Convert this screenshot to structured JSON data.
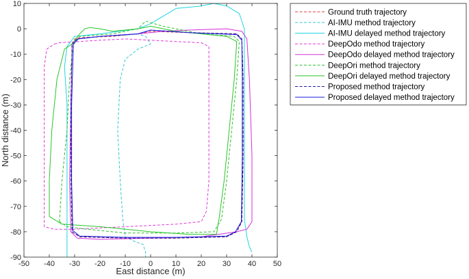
{
  "chart_data": {
    "type": "line",
    "xlabel": "East distance (m)",
    "ylabel": "North distance (m)",
    "xlim": [
      -50,
      50
    ],
    "ylim": [
      -90,
      10
    ],
    "xticks": [
      -50,
      -40,
      -30,
      -20,
      -10,
      0,
      10,
      20,
      30,
      40,
      50
    ],
    "yticks": [
      10,
      0,
      -10,
      -20,
      -30,
      -40,
      -50,
      -60,
      -70,
      -80,
      -90
    ],
    "grid": false,
    "legend_position": "outside-right",
    "series": [
      {
        "name": "Ground truth trajectory",
        "color": "#e03a3a",
        "dash": "dashed",
        "points": [
          [
            -31,
            -6
          ],
          [
            -30,
            -4
          ],
          [
            -28,
            -3.5
          ],
          [
            -15,
            -3
          ],
          [
            -5,
            -2
          ],
          [
            0,
            -1
          ],
          [
            15,
            -1.5
          ],
          [
            34,
            -2
          ],
          [
            36,
            -4
          ],
          [
            36.5,
            -20
          ],
          [
            36.5,
            -50
          ],
          [
            36,
            -76
          ],
          [
            34,
            -80
          ],
          [
            30,
            -82
          ],
          [
            10,
            -82.5
          ],
          [
            -10,
            -82.5
          ],
          [
            -28,
            -82
          ],
          [
            -31,
            -80
          ],
          [
            -31.5,
            -60
          ],
          [
            -31.5,
            -30
          ],
          [
            -31,
            -6
          ]
        ]
      },
      {
        "name": "AI-IMU method trajectory",
        "color": "#33c6d6",
        "dash": "dashed",
        "points": [
          [
            -31,
            -6
          ],
          [
            -29,
            -4
          ],
          [
            -20,
            -3
          ],
          [
            -10,
            -2.5
          ],
          [
            -5,
            -2
          ],
          [
            -2,
            -3
          ],
          [
            0,
            -6
          ],
          [
            -5,
            -8
          ],
          [
            -10,
            -12
          ],
          [
            -12,
            -20
          ],
          [
            -13,
            -40
          ],
          [
            -12,
            -60
          ],
          [
            -11,
            -75
          ],
          [
            -10,
            -82
          ],
          [
            -6,
            -84
          ],
          [
            -3,
            -85
          ],
          [
            -2,
            -88
          ],
          [
            -2,
            -90
          ]
        ]
      },
      {
        "name": "AI-IMU delayed method trajectory",
        "color": "#20d4e0",
        "dash": "solid",
        "points": [
          [
            -33,
            -90
          ],
          [
            -33,
            -70
          ],
          [
            -33,
            -30
          ],
          [
            -34,
            -15
          ],
          [
            -33,
            -7
          ],
          [
            -30,
            -3
          ],
          [
            -20,
            -2
          ],
          [
            -5,
            0
          ],
          [
            0,
            2
          ],
          [
            5,
            5
          ],
          [
            10,
            8
          ],
          [
            20,
            9
          ],
          [
            25,
            10
          ],
          [
            30,
            9
          ],
          [
            35,
            6
          ],
          [
            36,
            3
          ],
          [
            37,
            0
          ],
          [
            37,
            -10
          ],
          [
            37,
            -40
          ],
          [
            37,
            -75
          ],
          [
            38,
            -82
          ],
          [
            39,
            -86
          ],
          [
            40,
            -88
          ]
        ]
      },
      {
        "name": "DeepOdo method trajectory",
        "color": "#dd3ad8",
        "dash": "dashed",
        "points": [
          [
            -38,
            -6
          ],
          [
            -36,
            -5.5
          ],
          [
            -20,
            -4.5
          ],
          [
            -10,
            -4
          ],
          [
            0,
            -4.5
          ],
          [
            10,
            -5
          ],
          [
            20,
            -5.5
          ],
          [
            23,
            -7
          ],
          [
            23,
            -20
          ],
          [
            23,
            -40
          ],
          [
            23,
            -60
          ],
          [
            22,
            -72
          ],
          [
            20,
            -76
          ],
          [
            10,
            -77
          ],
          [
            -10,
            -78
          ],
          [
            -30,
            -79
          ],
          [
            -38,
            -79
          ],
          [
            -42,
            -78
          ],
          [
            -42,
            -70
          ],
          [
            -42,
            -40
          ],
          [
            -42,
            -15
          ],
          [
            -41,
            -8
          ],
          [
            -38,
            -6
          ]
        ]
      },
      {
        "name": "DeepOdo delayed method trajectory",
        "color": "#d52ed6",
        "dash": "solid",
        "points": [
          [
            -31,
            -6
          ],
          [
            -29,
            -4
          ],
          [
            -20,
            -3
          ],
          [
            -5,
            -2
          ],
          [
            5,
            -1
          ],
          [
            15,
            -0.5
          ],
          [
            30,
            0
          ],
          [
            36,
            -1
          ],
          [
            38,
            -4
          ],
          [
            39,
            -20
          ],
          [
            40,
            -50
          ],
          [
            40,
            -76
          ],
          [
            38,
            -79
          ],
          [
            34,
            -80
          ],
          [
            20,
            -82
          ],
          [
            0,
            -82.5
          ],
          [
            -20,
            -83
          ],
          [
            -29,
            -82.5
          ],
          [
            -31.5,
            -80
          ],
          [
            -32,
            -60
          ],
          [
            -31.5,
            -30
          ],
          [
            -31,
            -6
          ]
        ]
      },
      {
        "name": "DeepOri method trajectory",
        "color": "#2fbf2f",
        "dash": "dashed",
        "points": [
          [
            -36,
            -76
          ],
          [
            -35,
            -60
          ],
          [
            -33,
            -40
          ],
          [
            -32,
            -20
          ],
          [
            -31,
            -10
          ],
          [
            -30,
            -5
          ],
          [
            -28,
            -3
          ],
          [
            -15,
            -2
          ],
          [
            -5,
            0
          ],
          [
            -2,
            3
          ],
          [
            5,
            1
          ],
          [
            20,
            -2
          ],
          [
            33,
            -3
          ],
          [
            35,
            -5
          ],
          [
            34,
            -20
          ],
          [
            32,
            -40
          ],
          [
            30,
            -60
          ],
          [
            28,
            -75
          ],
          [
            25,
            -80
          ],
          [
            10,
            -80.5
          ],
          [
            -10,
            -80.5
          ],
          [
            -25,
            -79
          ],
          [
            -33,
            -78
          ],
          [
            -36,
            -76
          ]
        ]
      },
      {
        "name": "DeepOri delayed method trajectory",
        "color": "#27c527",
        "dash": "solid",
        "points": [
          [
            -31,
            -6
          ],
          [
            -28,
            -2
          ],
          [
            -26,
            0
          ],
          [
            -24,
            0.5
          ],
          [
            -20,
            0
          ],
          [
            -15,
            -1
          ],
          [
            -5,
            0
          ],
          [
            0,
            1
          ],
          [
            10,
            -1
          ],
          [
            20,
            -2
          ],
          [
            30,
            -3
          ],
          [
            34,
            -5
          ],
          [
            33,
            -20
          ],
          [
            31,
            -40
          ],
          [
            29,
            -60
          ],
          [
            27,
            -75
          ],
          [
            26,
            -81
          ],
          [
            15,
            -81
          ],
          [
            0,
            -80
          ],
          [
            -20,
            -78
          ],
          [
            -35,
            -77
          ],
          [
            -40,
            -74
          ],
          [
            -40,
            -60
          ],
          [
            -39,
            -40
          ],
          [
            -37,
            -20
          ],
          [
            -34,
            -8
          ],
          [
            -31,
            -6
          ]
        ]
      },
      {
        "name": "Proposed method trajectory",
        "color": "#1a1a9e",
        "dash": "dashed",
        "points": [
          [
            -31,
            -6
          ],
          [
            -29,
            -4
          ],
          [
            -20,
            -3
          ],
          [
            -5,
            -2
          ],
          [
            0,
            -0.5
          ],
          [
            15,
            -1.5
          ],
          [
            34,
            -2
          ],
          [
            36,
            -4
          ],
          [
            36.5,
            -20
          ],
          [
            36.5,
            -50
          ],
          [
            36,
            -76
          ],
          [
            34,
            -80
          ],
          [
            30,
            -82
          ],
          [
            10,
            -82.5
          ],
          [
            -10,
            -82.5
          ],
          [
            -28,
            -82
          ],
          [
            -31,
            -80
          ],
          [
            -31.5,
            -60
          ],
          [
            -31.5,
            -30
          ],
          [
            -31,
            -6
          ]
        ]
      },
      {
        "name": "Proposed delayed method trajectory",
        "color": "#1a1ae0",
        "dash": "solid",
        "points": [
          [
            -30.5,
            -6
          ],
          [
            -28.5,
            -4
          ],
          [
            -20,
            -3
          ],
          [
            -5,
            -2
          ],
          [
            0,
            -0.5
          ],
          [
            15,
            -1.5
          ],
          [
            34,
            -2.3
          ],
          [
            36,
            -4.5
          ],
          [
            36.2,
            -20
          ],
          [
            36.2,
            -50
          ],
          [
            35.8,
            -76
          ],
          [
            33.5,
            -80
          ],
          [
            30,
            -81.7
          ],
          [
            10,
            -82.2
          ],
          [
            -10,
            -82.2
          ],
          [
            -28,
            -81.7
          ],
          [
            -30.7,
            -79.5
          ],
          [
            -31.2,
            -60
          ],
          [
            -31.2,
            -30
          ],
          [
            -30.5,
            -6
          ]
        ]
      }
    ]
  }
}
